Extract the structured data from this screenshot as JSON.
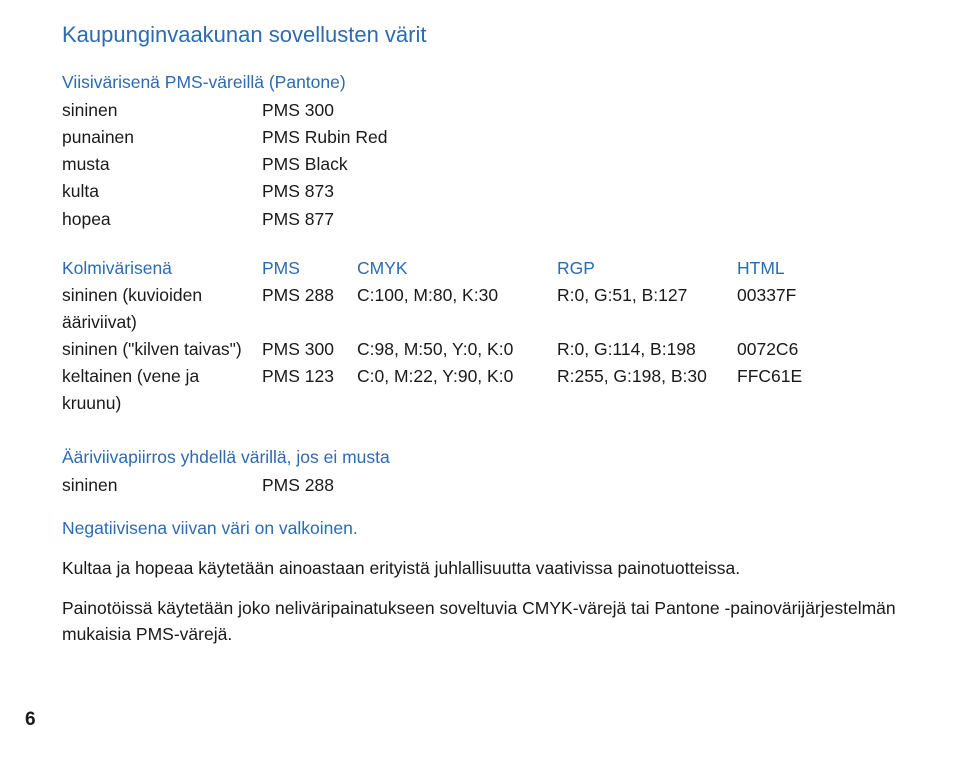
{
  "colors": {
    "accent": "#2c6bb2",
    "text": "#1a1a1a",
    "background": "#ffffff"
  },
  "typography": {
    "title_fontsize": 22,
    "body_fontsize": 17.5,
    "font_family": "Arial, Helvetica, sans-serif"
  },
  "title": "Kaupunginvaakunan sovellusten värit",
  "viisi": {
    "heading": "Viisivärisenä PMS-väreillä (Pantone)",
    "rows": [
      {
        "name": "sininen",
        "pms": "PMS 300"
      },
      {
        "name": "punainen",
        "pms": "PMS Rubin Red"
      },
      {
        "name": "musta",
        "pms": "PMS Black"
      },
      {
        "name": "kulta",
        "pms": "PMS 873"
      },
      {
        "name": "hopea",
        "pms": "PMS 877"
      }
    ]
  },
  "kolmi": {
    "heading_label": "Kolmivärisenä",
    "headers": {
      "c1": "PMS",
      "c2": "CMYK",
      "c3": "RGP",
      "c4": "HTML"
    },
    "rows": [
      {
        "name": "sininen (kuvioiden ääriviivat)",
        "pms": "PMS 288",
        "cmyk": "C:100, M:80, K:30",
        "rgp": "R:0, G:51, B:127",
        "html": "00337F"
      },
      {
        "name": "sininen (\"kilven taivas\")",
        "pms": "PMS 300",
        "cmyk": "C:98, M:50, Y:0, K:0",
        "rgp": "R:0, G:114, B:198",
        "html": "0072C6"
      },
      {
        "name": "keltainen (vene ja kruunu)",
        "pms": "PMS 123",
        "cmyk": "C:0, M:22, Y:90, K:0",
        "rgp": "R:255, G:198, B:30",
        "html": "FFC61E"
      }
    ]
  },
  "aariviiva": {
    "heading": "Ääriviivapiirros yhdellä värillä, jos ei musta",
    "row": {
      "name": "sininen",
      "pms": "PMS 288"
    }
  },
  "negatiivisena": "Negatiivisena viivan väri on valkoinen.",
  "paragraphs": {
    "p1": "Kultaa ja hopeaa käytetään ainoastaan erityistä juhlallisuutta vaativissa painotuotteissa.",
    "p2": "Painotöissä käytetään joko neliväripainatukseen soveltuvia CMYK-värejä tai Pantone -painovärijärjestelmän mukaisia PMS-värejä."
  },
  "page_number": "6"
}
